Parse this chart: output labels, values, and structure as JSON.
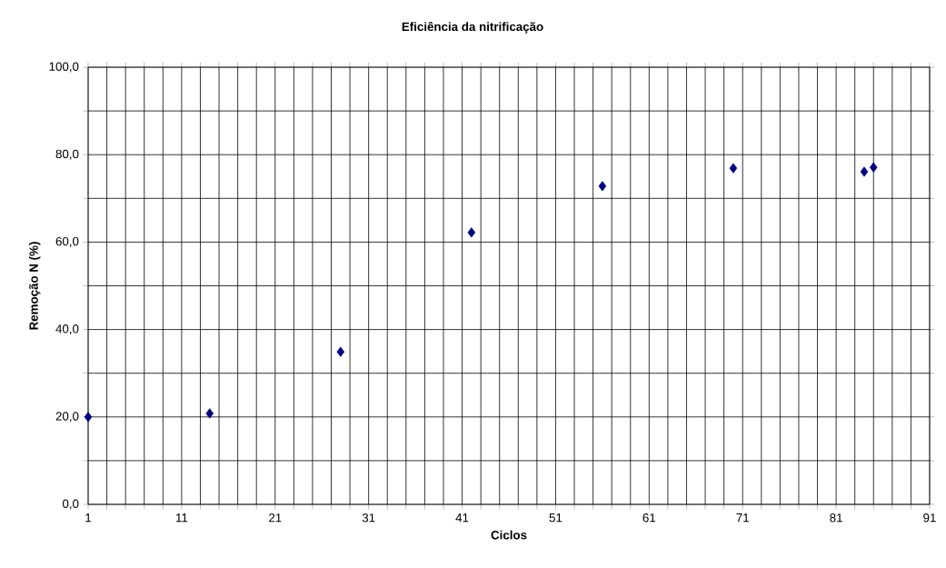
{
  "chart_data": {
    "type": "scatter",
    "title": "Eficiência da nitrificação",
    "xlabel": "Ciclos",
    "ylabel": "Remoção N (%)",
    "x": [
      1,
      14,
      28,
      42,
      56,
      70,
      84,
      85
    ],
    "series": [
      {
        "color": "#000080",
        "values": [
          20.0,
          20.8,
          34.9,
          62.2,
          72.8,
          76.9,
          76.1,
          77.1
        ]
      }
    ],
    "marker": "diamond",
    "grid": true,
    "xlim": [
      1,
      91
    ],
    "ylim": [
      0,
      100
    ],
    "xticks": [
      1,
      {
        "value": 3,
        "label": null
      },
      {
        "value": 5,
        "label": null
      },
      {
        "value": 7,
        "label": null
      },
      {
        "value": 9,
        "label": null
      },
      11,
      {
        "value": 13,
        "label": null
      },
      {
        "value": 15,
        "label": null
      },
      {
        "value": 17,
        "label": null
      },
      {
        "value": 19,
        "label": null
      },
      21,
      {
        "value": 23,
        "label": null
      },
      {
        "value": 25,
        "label": null
      },
      {
        "value": 27,
        "label": null
      },
      {
        "value": 29,
        "label": null
      },
      31,
      {
        "value": 33,
        "label": null
      },
      {
        "value": 35,
        "label": null
      },
      {
        "value": 37,
        "label": null
      },
      {
        "value": 39,
        "label": null
      },
      41,
      {
        "value": 43,
        "label": null
      },
      {
        "value": 45,
        "label": null
      },
      {
        "value": 47,
        "label": null
      },
      {
        "value": 49,
        "label": null
      },
      51,
      {
        "value": 53,
        "label": null
      },
      {
        "value": 55,
        "label": null
      },
      {
        "value": 57,
        "label": null
      },
      {
        "value": 59,
        "label": null
      },
      61,
      {
        "value": 63,
        "label": null
      },
      {
        "value": 65,
        "label": null
      },
      {
        "value": 67,
        "label": null
      },
      {
        "value": 69,
        "label": null
      },
      71,
      {
        "value": 73,
        "label": null
      },
      {
        "value": 75,
        "label": null
      },
      {
        "value": 77,
        "label": null
      },
      {
        "value": 79,
        "label": null
      },
      81,
      {
        "value": 83,
        "label": null
      },
      {
        "value": 85,
        "label": null
      },
      {
        "value": 87,
        "label": null
      },
      {
        "value": 89,
        "label": null
      },
      91
    ],
    "yticks": [
      {
        "value": 0,
        "label": "0,0"
      },
      {
        "value": 10,
        "label": null
      },
      {
        "value": 20,
        "label": "20,0"
      },
      {
        "value": 30,
        "label": null
      },
      {
        "value": 40,
        "label": "40,0"
      },
      {
        "value": 50,
        "label": null
      },
      {
        "value": 60,
        "label": "60,0"
      },
      {
        "value": 70,
        "label": null
      },
      {
        "value": 80,
        "label": "80,0"
      },
      {
        "value": 90,
        "label": null
      },
      {
        "value": 100,
        "label": "100,0"
      }
    ]
  }
}
